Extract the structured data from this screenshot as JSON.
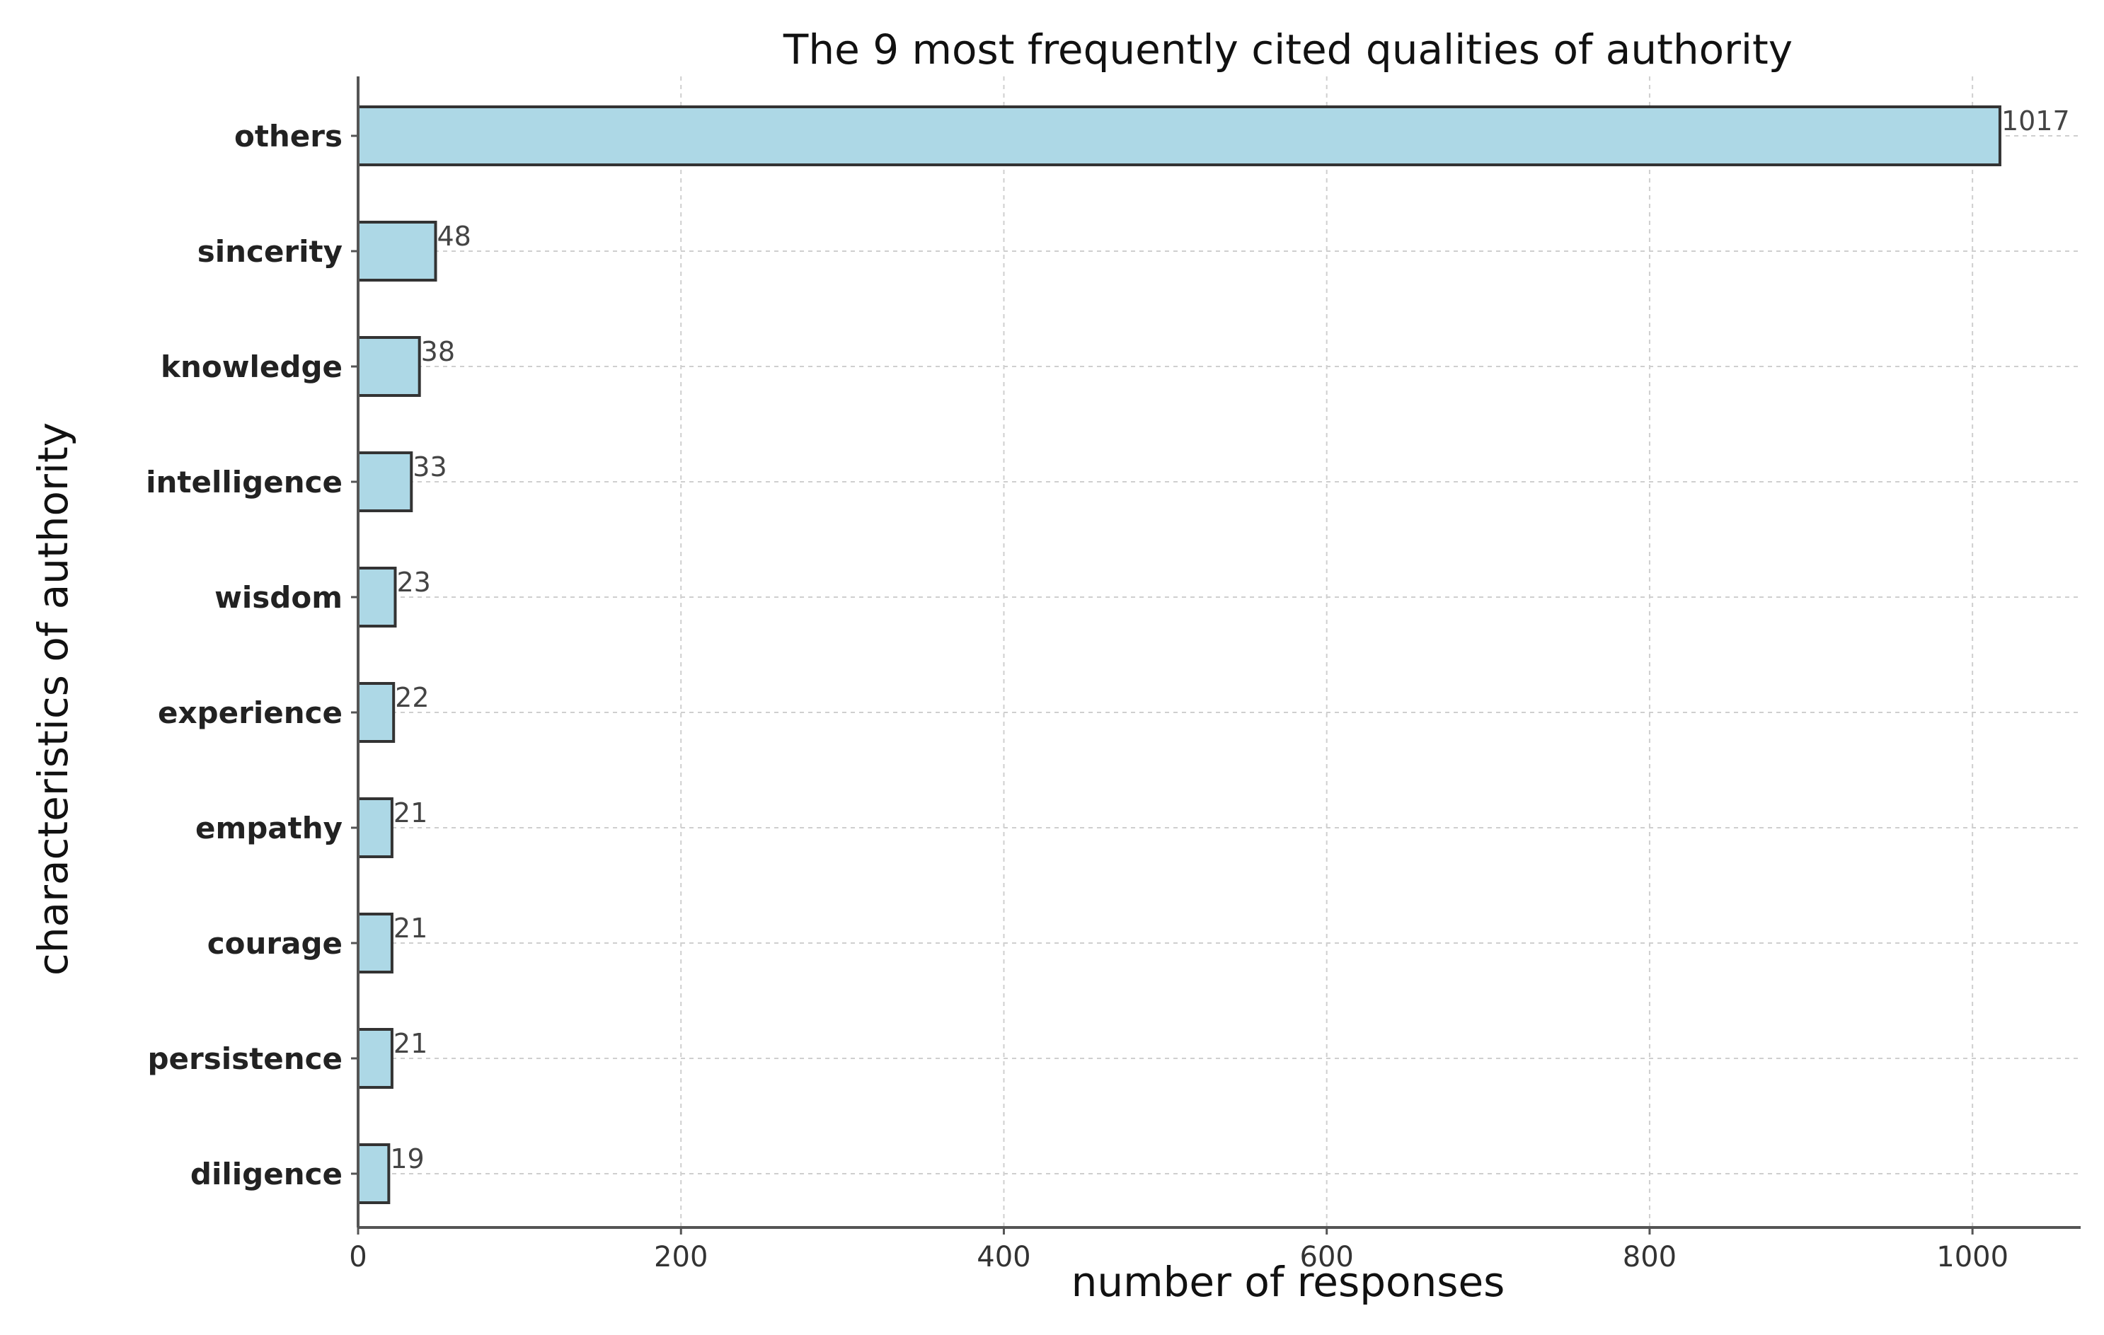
{
  "chart_data": {
    "type": "bar",
    "orientation": "horizontal",
    "title": "The 9 most frequently cited qualities of authority",
    "xlabel": "number of responses",
    "ylabel": "characteristics of authority",
    "categories": [
      "others",
      "sincerity",
      "knowledge",
      "intelligence",
      "wisdom",
      "experience",
      "empathy",
      "courage",
      "persistence",
      "diligence"
    ],
    "values": [
      1017,
      48,
      38,
      33,
      23,
      22,
      21,
      21,
      21,
      19
    ],
    "data_labels": [
      "1017",
      "48",
      "38",
      "33",
      "23",
      "22",
      "21",
      "21",
      "21",
      "19"
    ],
    "xlim": [
      0,
      1067
    ],
    "xticks": [
      0,
      200,
      400,
      600,
      800,
      1000
    ],
    "xtick_labels": [
      "0",
      "200",
      "400",
      "600",
      "800",
      "1000"
    ],
    "grid": true,
    "bar_color": "#add8e6",
    "edge_color": "#333333"
  }
}
